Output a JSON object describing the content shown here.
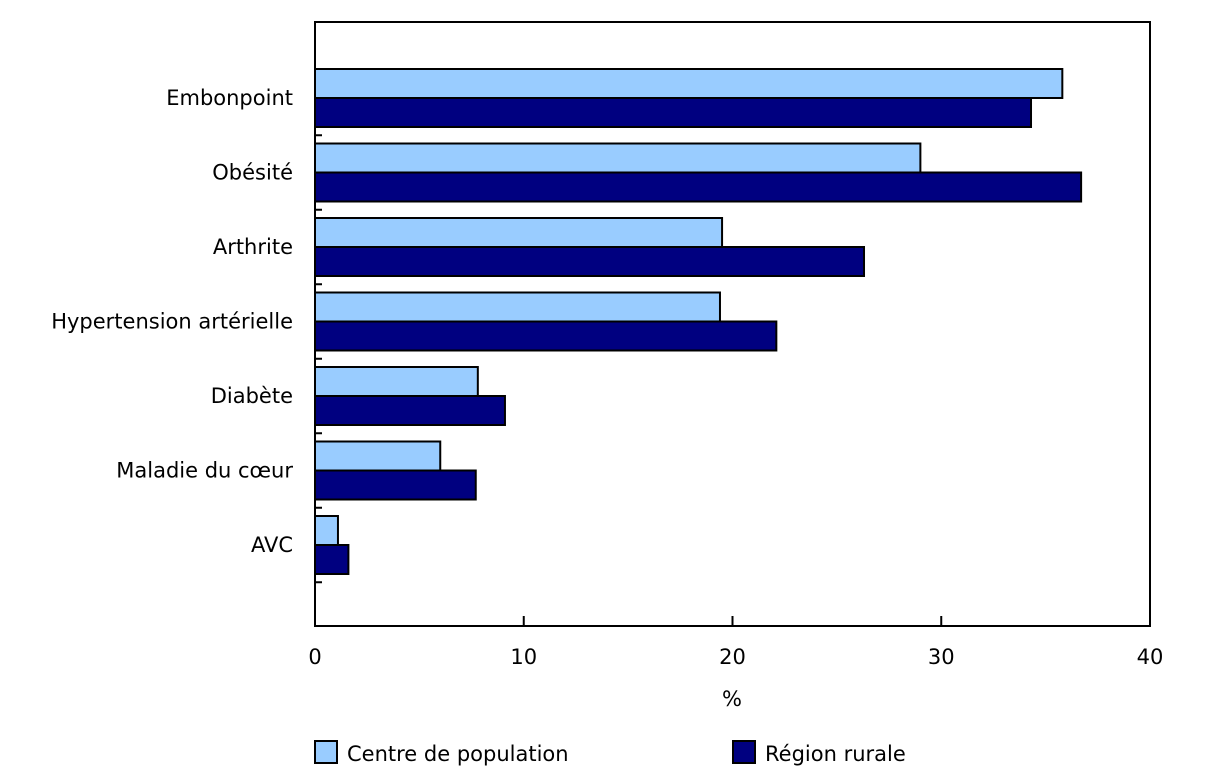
{
  "chart_data": {
    "type": "bar",
    "orientation": "horizontal",
    "title": "",
    "categories": [
      "Embonpoint",
      "Obésité",
      "Arthrite",
      "Hypertension artérielle",
      "Diabète",
      "Maladie du cœur",
      "AVC"
    ],
    "series": [
      {
        "name": "Centre de population",
        "color": "#99ccff",
        "values": [
          35.8,
          29.0,
          19.5,
          19.4,
          7.8,
          6.0,
          1.1
        ]
      },
      {
        "name": "Région rurale",
        "color": "#000080",
        "values": [
          34.3,
          36.7,
          26.3,
          22.1,
          9.1,
          7.7,
          1.6
        ]
      }
    ],
    "xlabel": "%",
    "ylabel": "",
    "xlim": [
      0,
      40
    ],
    "xticks": [
      "0",
      "10",
      "20",
      "30",
      "40"
    ],
    "grid": false,
    "legend_position": "bottom"
  }
}
